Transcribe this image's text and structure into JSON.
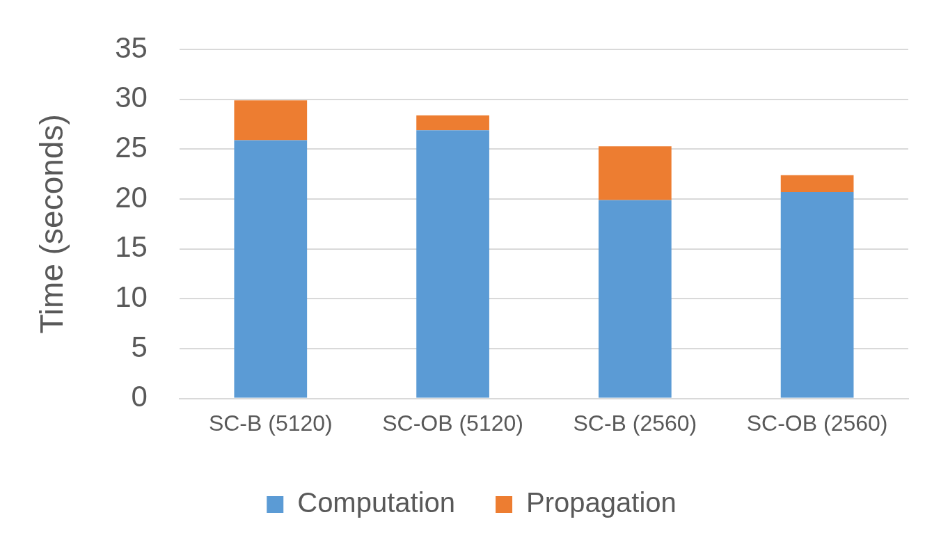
{
  "chart_data": {
    "type": "bar",
    "ylabel": "Time (seconds)",
    "categories": [
      "SC-B (5120)",
      "SC-OB (5120)",
      "SC-B (2560)",
      "SC-OB (2560)"
    ],
    "series": [
      {
        "name": "Computation",
        "color": "#5b9bd5",
        "values": [
          25.9,
          26.9,
          19.9,
          20.7
        ]
      },
      {
        "name": "Propagation",
        "color": "#ed7d31",
        "values": [
          4.0,
          1.5,
          5.4,
          1.7
        ]
      }
    ],
    "stacked": true,
    "ylim": [
      0,
      35
    ],
    "yticks": [
      0,
      5,
      10,
      15,
      20,
      25,
      30,
      35
    ],
    "grid": "y",
    "legend": "bottom"
  }
}
